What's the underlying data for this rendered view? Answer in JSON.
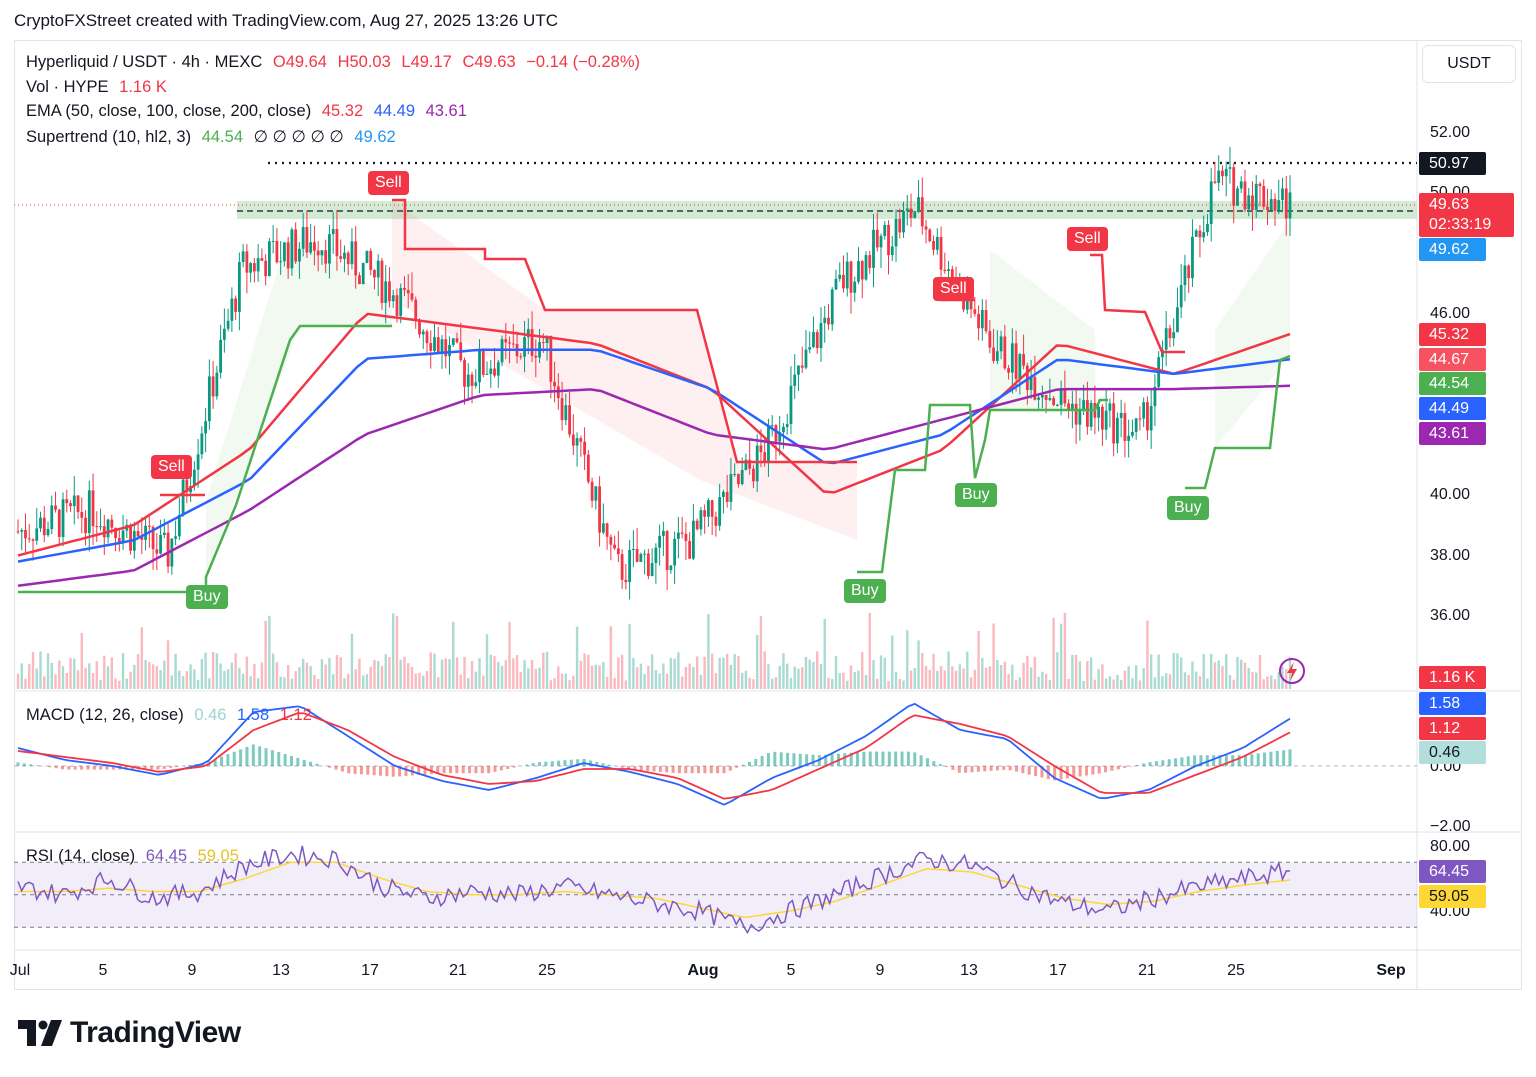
{
  "credit": "CryptoFXStreet created with TradingView.com, Aug 27, 2025 13:26 UTC",
  "legend": {
    "symbol": "Hyperliquid / USDT · 4h · MEXC",
    "open": "O49.64",
    "high": "H50.03",
    "low": "L49.17",
    "close": "C49.63",
    "change": "−0.14 (−0.28%)",
    "vol_label": "Vol · HYPE",
    "vol_value": "1.16 K",
    "ema_label": "EMA (50, close, 100, close, 200, close)",
    "ema50": "45.32",
    "ema100": "44.49",
    "ema200": "43.61",
    "st_label": "Supertrend (10, hl2, 3)",
    "st_up": "44.54",
    "st_na": "∅ ∅ ∅ ∅ ∅",
    "st_down": "49.62",
    "macd_label": "MACD (12, 26, close)",
    "macd_hist": "0.46",
    "macd_line": "1.58",
    "macd_signal": "1.12",
    "rsi_label": "RSI (14, close)",
    "rsi_value": "64.45",
    "rsi_ma": "59.05"
  },
  "currency": "USDT",
  "price_axis": [
    "52.00",
    "50.00",
    "46.00",
    "40.00",
    "38.00",
    "36.00"
  ],
  "macd_axis": [
    "0.00",
    "−2.00"
  ],
  "rsi_axis": [
    "80.00",
    "40.00"
  ],
  "time_axis": [
    "Jul",
    "5",
    "9",
    "13",
    "17",
    "21",
    "25",
    "Aug",
    "5",
    "9",
    "13",
    "17",
    "21",
    "25",
    "Sep"
  ],
  "price_tags": {
    "resistance": "50.97",
    "last": "49.63",
    "countdown": "02:33:19",
    "supertrend_down": "49.62",
    "ema50": "45.32",
    "tag_4467": "44.67",
    "supertrend_up": "44.54",
    "ema100": "44.49",
    "ema200": "43.61",
    "volume": "1.16 K",
    "macd_line": "1.58",
    "macd_signal": "1.12",
    "macd_hist": "0.46",
    "rsi": "64.45",
    "rsi_ma": "59.05"
  },
  "signals": {
    "buy": "Buy",
    "sell": "Sell"
  },
  "logo": "TradingView",
  "colors": {
    "up": "#089981",
    "down": "#f23645",
    "ema50": "#f23645",
    "ema100": "#2962ff",
    "ema200": "#9c27b0",
    "supertrend_up": "#4caf50",
    "supertrend_down": "#f23645",
    "rsi": "#7e57c2",
    "rsi_ma": "#fdd835",
    "zone": "#c8e6c9"
  },
  "chart_data": {
    "type": "candlestick",
    "title": "Hyperliquid / USDT · 4h · MEXC",
    "ylabel": "USDT",
    "ylim": [
      35,
      53
    ],
    "resistance_level": 50.97,
    "support_zone": [
      49.3,
      50.2
    ],
    "x_dates": [
      "Jul 1",
      "Jul 5",
      "Jul 9",
      "Jul 13",
      "Jul 17",
      "Jul 21",
      "Jul 25",
      "Aug 1",
      "Aug 5",
      "Aug 9",
      "Aug 13",
      "Aug 17",
      "Aug 21",
      "Aug 25",
      "Aug 27"
    ],
    "close_path": [
      38.8,
      39.5,
      38.0,
      47.5,
      48.5,
      46.8,
      44.0,
      45.2,
      37.5,
      38.5,
      41.5,
      47.0,
      49.5,
      45.0,
      43.0,
      42.0,
      50.4,
      49.63
    ],
    "series": [
      {
        "name": "EMA 50",
        "values": [
          38.0,
          39.0,
          41.5,
          46.0,
          45.5,
          45.0,
          43.5,
          40.0,
          41.5,
          45.0,
          44.0,
          45.32
        ]
      },
      {
        "name": "EMA 100",
        "values": [
          37.8,
          38.5,
          40.5,
          44.5,
          44.8,
          44.8,
          43.5,
          41.0,
          42.0,
          44.5,
          44.0,
          44.49
        ]
      },
      {
        "name": "EMA 200",
        "values": [
          37.0,
          37.5,
          39.5,
          42.0,
          43.3,
          43.5,
          42.0,
          41.5,
          42.5,
          43.5,
          43.5,
          43.61
        ]
      }
    ],
    "supertrend_signals": [
      {
        "type": "Sell",
        "date": "Jul 8"
      },
      {
        "type": "Buy",
        "date": "Jul 9"
      },
      {
        "type": "Sell",
        "date": "Jul 18"
      },
      {
        "type": "Buy",
        "date": "Aug 8"
      },
      {
        "type": "Sell",
        "date": "Aug 11"
      },
      {
        "type": "Buy",
        "date": "Aug 11"
      },
      {
        "type": "Sell",
        "date": "Aug 18"
      },
      {
        "type": "Buy",
        "date": "Aug 22"
      }
    ],
    "macd": {
      "macd": 1.58,
      "signal": 1.12,
      "histogram": 0.46
    },
    "rsi": {
      "rsi": 64.45,
      "ma": 59.05,
      "bands": [
        70,
        50,
        30
      ]
    }
  }
}
